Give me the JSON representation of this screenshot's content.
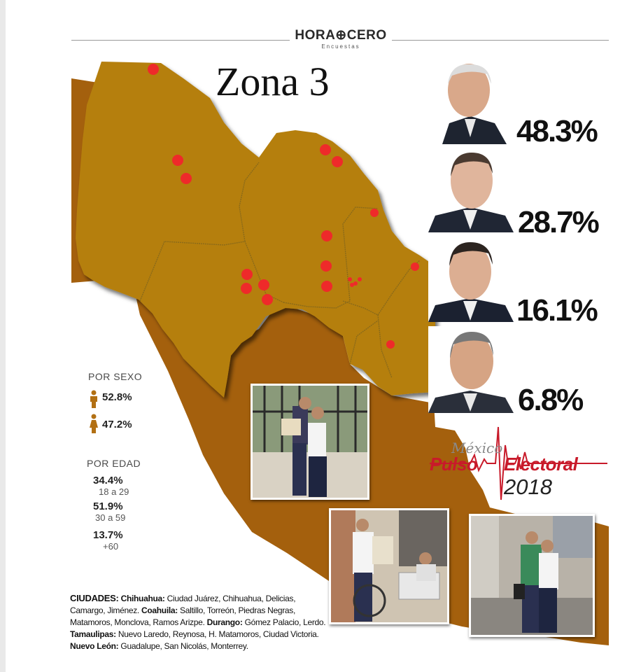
{
  "brand": {
    "name": "HORA⊕CERO",
    "sub": "Encuestas"
  },
  "title": "Zona 3",
  "map": {
    "land_color": "#a4600d",
    "highlight_color": "#b57f10",
    "border_color": "#8a6a1a",
    "marker_color": "#ee2a2a",
    "markers": 19
  },
  "candidates": [
    {
      "pct": "48.3%",
      "photo": "candidate-1"
    },
    {
      "pct": "28.7%",
      "photo": "candidate-2"
    },
    {
      "pct": "16.1%",
      "photo": "candidate-3"
    },
    {
      "pct": "6.8%",
      "photo": "candidate-4"
    }
  ],
  "demographics": {
    "sex_label": "POR SEXO",
    "male_pct": "52.8%",
    "female_pct": "47.2%",
    "age_label": "POR EDAD",
    "age": [
      {
        "pct": "34.4%",
        "range": "18 a 29"
      },
      {
        "pct": "51.9%",
        "range": "30 a 59"
      },
      {
        "pct": "13.7%",
        "range": "+60"
      }
    ]
  },
  "cities": {
    "heading": "CIUDADES:",
    "states": [
      {
        "state": "Chihuahua:",
        "list": "Ciudad Juárez, Chihuahua, Delicias, Camargo, Jiménez."
      },
      {
        "state": "Coahuila:",
        "list": "Saltillo, Torreón, Piedras Negras, Matamoros, Monclova, Ramos Arizpe."
      },
      {
        "state": "Durango:",
        "list": "Gómez Palacio, Lerdo."
      },
      {
        "state": "Tamaulipas:",
        "list": "Nuevo Laredo, Reynosa, H. Matamoros, Ciudad Victoria."
      },
      {
        "state": "Nuevo León:",
        "list": "Guadalupe, San Nicolás, Monterrey."
      }
    ]
  },
  "logo": {
    "mexico": "México",
    "pulso": "Pulso",
    "electoral": "Electoral",
    "year": "2018",
    "color": "#c81a2a"
  }
}
